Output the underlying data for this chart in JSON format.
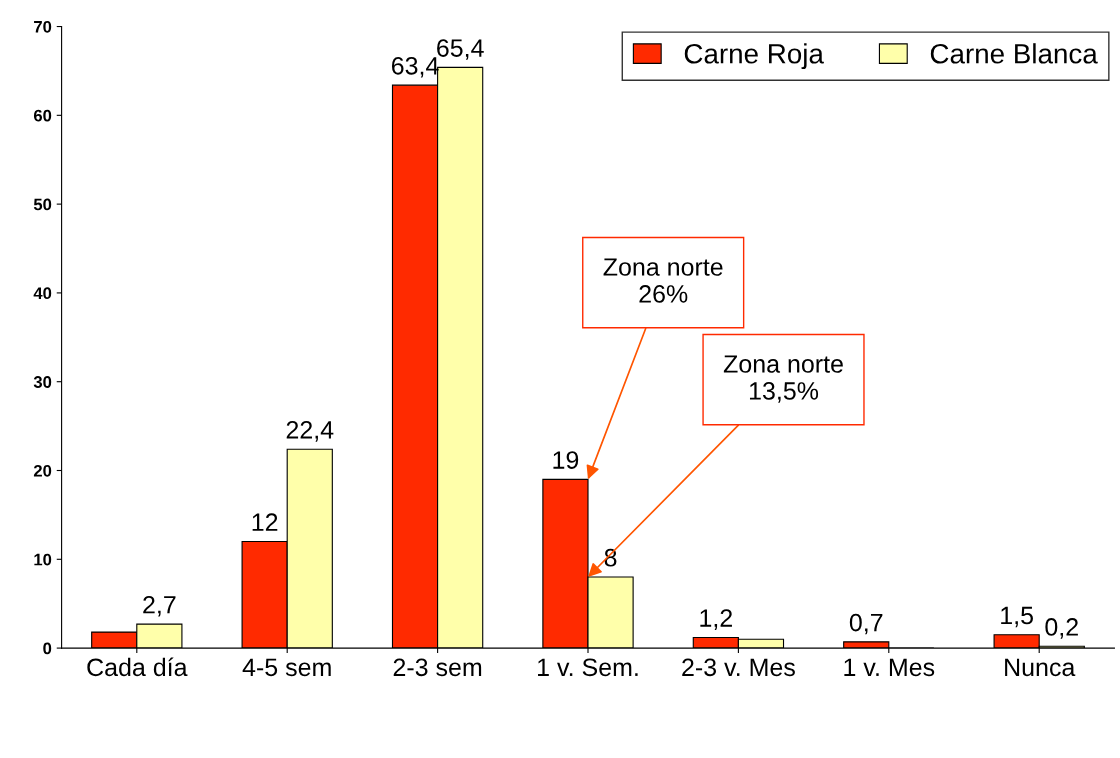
{
  "chart_data": {
    "type": "bar",
    "categories": [
      "Cada día",
      "4-5 sem",
      "2-3 sem",
      "1 v. Sem.",
      "2-3 v. Mes",
      "1 v. Mes",
      "Nunca"
    ],
    "series": [
      {
        "name": "Carne Roja",
        "color": "#ff2a00",
        "values": [
          1.8,
          12,
          63.4,
          19,
          1.2,
          0.7,
          1.5
        ],
        "value_labels": [
          null,
          "12",
          "63,4",
          "19",
          "1,2",
          "0,7",
          "1,5"
        ]
      },
      {
        "name": "Carne Blanca",
        "color": "#ffffaa",
        "values": [
          2.7,
          22.4,
          65.4,
          8,
          1.0,
          0,
          0.2
        ],
        "value_labels": [
          "2,7",
          "22,4",
          "65,4",
          "8",
          null,
          null,
          "0,2"
        ]
      }
    ],
    "ylim": [
      0,
      70
    ],
    "yticks": [
      0,
      10,
      20,
      30,
      40,
      50,
      60,
      70
    ],
    "grid": false,
    "legend": "top right",
    "annotations": [
      {
        "text": "Zona norte\n26%",
        "x": "1 v. Sem.",
        "y": 19
      },
      {
        "text": "Zona norte\n13,5%",
        "x": "1 v. Sem.",
        "y": 8
      }
    ]
  }
}
